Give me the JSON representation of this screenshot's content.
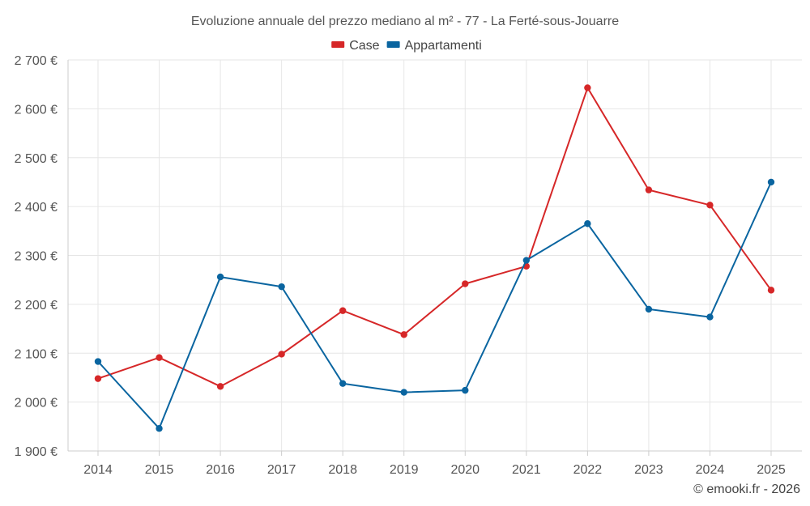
{
  "chart_data": {
    "type": "line",
    "title": "Evoluzione annuale del prezzo mediano al m² - 77 - La Ferté-sous-Jouarre",
    "categories": [
      "2014",
      "2015",
      "2016",
      "2017",
      "2018",
      "2019",
      "2020",
      "2021",
      "2022",
      "2023",
      "2024",
      "2025"
    ],
    "series": [
      {
        "name": "Case",
        "color": "#d62728",
        "values": [
          2048,
          2091,
          2032,
          2098,
          2187,
          2138,
          2242,
          2278,
          2643,
          2434,
          2403,
          2229
        ]
      },
      {
        "name": "Appartamenti",
        "color": "#0a65a0",
        "values": [
          2083,
          1946,
          2256,
          2236,
          2038,
          2020,
          2024,
          2290,
          2365,
          2190,
          2174,
          2450
        ]
      }
    ],
    "yticks": [
      1900,
      2000,
      2100,
      2200,
      2300,
      2400,
      2500,
      2600,
      2700
    ],
    "ytick_labels": [
      "1 900 €",
      "2 000 €",
      "2 100 €",
      "2 200 €",
      "2 300 €",
      "2 400 €",
      "2 500 €",
      "2 600 €",
      "2 700 €"
    ],
    "ylim": [
      1900,
      2700
    ],
    "xlabel": "",
    "ylabel": "",
    "legend_position": "top-center",
    "grid": true
  },
  "credit": "© emooki.fr - 2026"
}
